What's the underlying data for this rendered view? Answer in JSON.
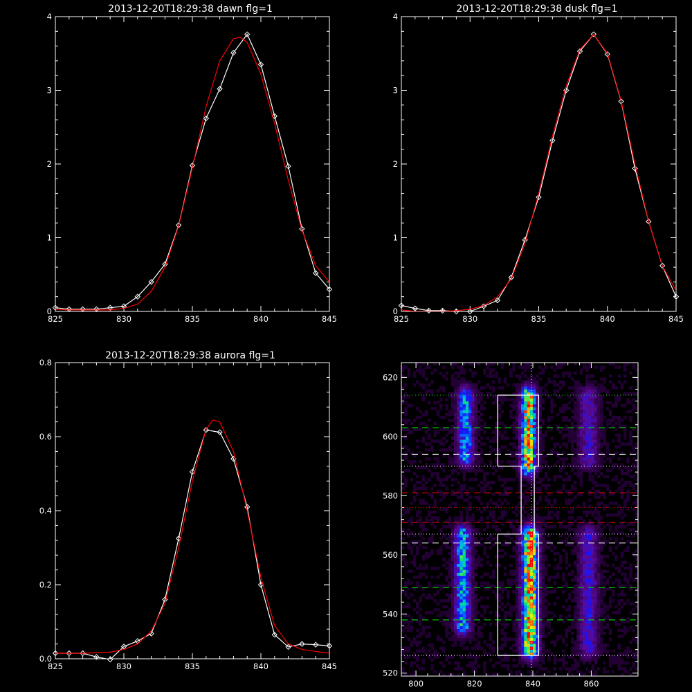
{
  "chart_data": [
    {
      "type": "line",
      "title": "2013-12-20T18:29:38 dawn flg=1",
      "xlim": [
        825,
        845
      ],
      "ylim": [
        0,
        4
      ],
      "xticks": [
        "825",
        "830",
        "835",
        "840",
        "845"
      ],
      "yticks": [
        "0",
        "1",
        "2",
        "3",
        "4"
      ],
      "series": [
        {
          "color": "#ffffff",
          "marker": "diamond",
          "x": [
            825,
            826,
            827,
            828,
            829,
            830,
            831,
            832,
            833,
            834,
            835,
            836,
            837,
            838,
            839,
            840,
            841,
            842,
            843,
            844,
            845
          ],
          "y": [
            0.05,
            0.03,
            0.03,
            0.03,
            0.05,
            0.07,
            0.2,
            0.4,
            0.64,
            1.17,
            1.98,
            2.62,
            3.02,
            3.51,
            3.76,
            3.35,
            2.65,
            1.97,
            1.12,
            0.52,
            0.3
          ]
        },
        {
          "color": "#ff0000",
          "kind": "fit",
          "x": [
            825,
            826,
            827,
            828,
            829,
            830,
            831,
            832,
            833,
            834,
            835,
            836,
            837,
            838,
            838.5,
            839,
            840,
            841,
            842,
            843,
            844,
            845
          ],
          "y": [
            0.03,
            0.02,
            0.02,
            0.02,
            0.02,
            0.04,
            0.1,
            0.27,
            0.6,
            1.16,
            1.95,
            2.78,
            3.4,
            3.7,
            3.72,
            3.65,
            3.22,
            2.55,
            1.78,
            1.1,
            0.62,
            0.4
          ]
        }
      ]
    },
    {
      "type": "line",
      "title": "2013-12-20T18:29:38 dusk flg=1",
      "xlim": [
        825,
        845
      ],
      "ylim": [
        0,
        4
      ],
      "xticks": [
        "825",
        "830",
        "835",
        "840",
        "845"
      ],
      "yticks": [
        "0",
        "1",
        "2",
        "3",
        "4"
      ],
      "series": [
        {
          "color": "#ffffff",
          "marker": "diamond",
          "x": [
            825,
            826,
            827,
            828,
            829,
            830,
            831,
            832,
            833,
            834,
            835,
            836,
            837,
            838,
            839,
            840,
            841,
            842,
            843,
            844,
            845
          ],
          "y": [
            0.08,
            0.04,
            0.01,
            0.01,
            0.0,
            0.0,
            0.07,
            0.15,
            0.46,
            0.97,
            1.55,
            2.32,
            3.0,
            3.53,
            3.76,
            3.49,
            2.85,
            1.94,
            1.22,
            0.62,
            0.2
          ]
        },
        {
          "color": "#ff0000",
          "kind": "fit",
          "x": [
            825,
            826,
            827,
            828,
            829,
            830,
            831,
            832,
            833,
            834,
            835,
            836,
            837,
            838,
            839,
            840,
            841,
            842,
            843,
            844,
            845
          ],
          "y": [
            0.02,
            0.0,
            0.0,
            0.0,
            0.01,
            0.03,
            0.08,
            0.2,
            0.44,
            0.92,
            1.6,
            2.38,
            3.06,
            3.55,
            3.76,
            3.5,
            2.86,
            2.0,
            1.22,
            0.62,
            0.28
          ]
        }
      ]
    },
    {
      "type": "line",
      "title": "2013-12-20T18:29:38 aurora flg=1",
      "xlim": [
        825,
        845
      ],
      "ylim": [
        0,
        0.8
      ],
      "xticks": [
        "825",
        "830",
        "835",
        "840",
        "845"
      ],
      "yticks": [
        "0.0",
        "0.2",
        "0.4",
        "0.6",
        "0.8"
      ],
      "series": [
        {
          "color": "#ffffff",
          "marker": "diamond",
          "x": [
            825,
            826,
            827,
            828,
            829,
            830,
            831,
            832,
            833,
            834,
            835,
            836,
            837,
            838,
            839,
            840,
            841,
            842,
            843,
            844,
            845
          ],
          "y": [
            0.015,
            0.015,
            0.015,
            0.005,
            -0.002,
            0.033,
            0.048,
            0.068,
            0.16,
            0.325,
            0.505,
            0.618,
            0.612,
            0.54,
            0.41,
            0.2,
            0.065,
            0.032,
            0.04,
            0.038,
            0.035
          ]
        },
        {
          "color": "#ff0000",
          "kind": "fit",
          "x": [
            825,
            826,
            827,
            828,
            829,
            830,
            831,
            832,
            833,
            834,
            835,
            836,
            836.5,
            837,
            838,
            839,
            840,
            841,
            842,
            843,
            844,
            845
          ],
          "y": [
            0.015,
            0.015,
            0.015,
            0.016,
            0.018,
            0.025,
            0.04,
            0.075,
            0.15,
            0.3,
            0.48,
            0.62,
            0.645,
            0.64,
            0.56,
            0.4,
            0.22,
            0.09,
            0.04,
            0.025,
            0.02,
            0.015
          ]
        }
      ]
    },
    {
      "type": "heatmap",
      "title": "",
      "xlim": [
        795,
        876
      ],
      "ylim": [
        519,
        625
      ],
      "xticks": [
        "800",
        "820",
        "840",
        "860"
      ],
      "yticks": [
        "520",
        "540",
        "560",
        "580",
        "600",
        "620"
      ],
      "bands": [
        {
          "x": 817,
          "wx": 2.6,
          "y0": 593,
          "y1": 614,
          "peak": 0.55
        },
        {
          "x": 816,
          "wx": 2.6,
          "y0": 536,
          "y1": 567,
          "peak": 0.6
        },
        {
          "x": 838.5,
          "wx": 2.4,
          "y0": 590,
          "y1": 614,
          "peak": 0.95
        },
        {
          "x": 839,
          "wx": 2.6,
          "y0": 528,
          "y1": 567,
          "peak": 1.0
        },
        {
          "x": 859,
          "wx": 3.0,
          "y0": 592,
          "y1": 614,
          "peak": 0.3
        },
        {
          "x": 859,
          "wx": 3.0,
          "y0": 528,
          "y1": 567,
          "peak": 0.32
        }
      ],
      "box_outline": {
        "x": [
          828,
          842,
          842,
          840.5,
          840.5,
          842,
          842,
          828,
          828,
          836,
          836,
          828,
          828
        ],
        "y": [
          614,
          614,
          590,
          590,
          567,
          567,
          526,
          526,
          567,
          567,
          590,
          590,
          614
        ]
      },
      "vline": {
        "x": 839.5,
        "color": "#ffffff",
        "style": "dotted"
      },
      "hlines": [
        {
          "y": 614,
          "color": "#00dd00",
          "style": "dotted"
        },
        {
          "y": 603,
          "color": "#00dd00",
          "style": "dashed"
        },
        {
          "y": 594,
          "color": "#ffffff",
          "style": "dashed"
        },
        {
          "y": 590,
          "color": "#ffffff",
          "style": "dotted"
        },
        {
          "y": 581,
          "color": "#dd0000",
          "style": "dashed"
        },
        {
          "y": 576,
          "color": "#dd0000",
          "style": "dotted"
        },
        {
          "y": 571,
          "color": "#dd0000",
          "style": "dashed"
        },
        {
          "y": 567,
          "color": "#ffffff",
          "style": "dotted"
        },
        {
          "y": 564,
          "color": "#ffffff",
          "style": "dashed"
        },
        {
          "y": 549,
          "color": "#00dd00",
          "style": "dashed"
        },
        {
          "y": 538,
          "color": "#00dd00",
          "style": "dashed"
        },
        {
          "y": 526,
          "color": "#ffffff",
          "style": "dotted"
        }
      ]
    }
  ]
}
